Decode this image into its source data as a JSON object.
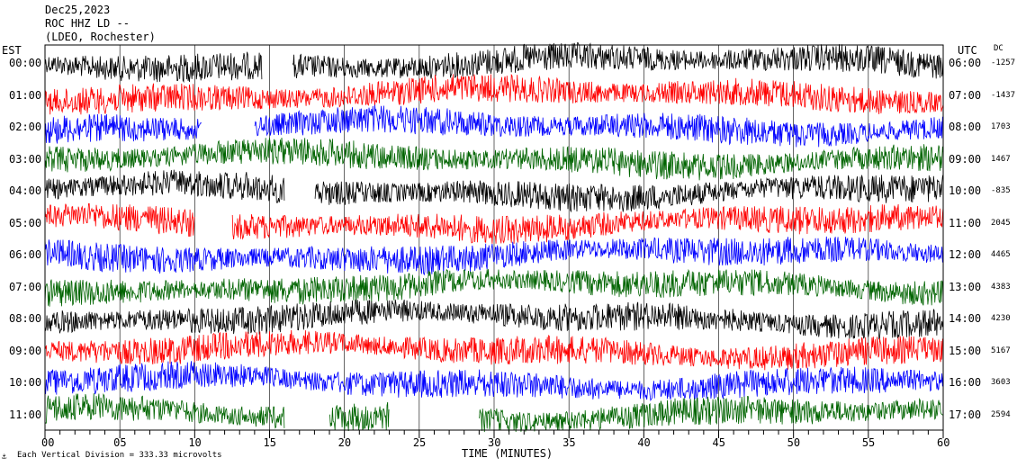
{
  "header": {
    "date": "Dec25,2023",
    "station": "ROC HHZ LD --",
    "location": "(LDEO, Rochester)"
  },
  "axes": {
    "left_tz": "EST",
    "right_tz": "UTC",
    "dc_header": "DC",
    "xlabel": "TIME (MINUTES)",
    "footer": "Each Vertical Division =  333.33 microvolts",
    "footer_mark": "⚓"
  },
  "chart_data": {
    "type": "line",
    "title": "ROC HHZ LD --",
    "xlabel": "TIME (MINUTES)",
    "ylabel": "",
    "xlim": [
      0,
      60
    ],
    "x_ticks": [
      "00",
      "05",
      "10",
      "15",
      "20",
      "25",
      "30",
      "35",
      "40",
      "45",
      "50",
      "55",
      "60"
    ],
    "color_cycle": [
      "#000000",
      "#ff0000",
      "#0000ff",
      "#006400"
    ],
    "rows": [
      {
        "est": "00:00",
        "utc": "06:00",
        "dc": "-1257",
        "color": "#000000"
      },
      {
        "est": "01:00",
        "utc": "07:00",
        "dc": "-1437",
        "color": "#ff0000"
      },
      {
        "est": "02:00",
        "utc": "08:00",
        "dc": "1703",
        "color": "#0000ff"
      },
      {
        "est": "03:00",
        "utc": "09:00",
        "dc": "1467",
        "color": "#006400"
      },
      {
        "est": "04:00",
        "utc": "10:00",
        "dc": "-835",
        "color": "#000000"
      },
      {
        "est": "05:00",
        "utc": "11:00",
        "dc": "2045",
        "color": "#ff0000"
      },
      {
        "est": "06:00",
        "utc": "12:00",
        "dc": "4465",
        "color": "#0000ff"
      },
      {
        "est": "07:00",
        "utc": "13:00",
        "dc": "4383",
        "color": "#006400"
      },
      {
        "est": "08:00",
        "utc": "14:00",
        "dc": "4230",
        "color": "#000000"
      },
      {
        "est": "09:00",
        "utc": "15:00",
        "dc": "5167",
        "color": "#ff0000"
      },
      {
        "est": "10:00",
        "utc": "16:00",
        "dc": "3603",
        "color": "#0000ff"
      },
      {
        "est": "11:00",
        "utc": "17:00",
        "dc": "2594",
        "color": "#006400"
      }
    ],
    "gaps": [
      {
        "row": 0,
        "from": 14.5,
        "to": 16.5
      },
      {
        "row": 2,
        "from": 10.5,
        "to": 14.0
      },
      {
        "row": 4,
        "from": 16.0,
        "to": 18.0
      },
      {
        "row": 5,
        "from": 10.0,
        "to": 12.5
      },
      {
        "row": 11,
        "from": 16.0,
        "to": 19.0
      },
      {
        "row": 11,
        "from": 23.0,
        "to": 29.0
      }
    ],
    "grid": true
  }
}
